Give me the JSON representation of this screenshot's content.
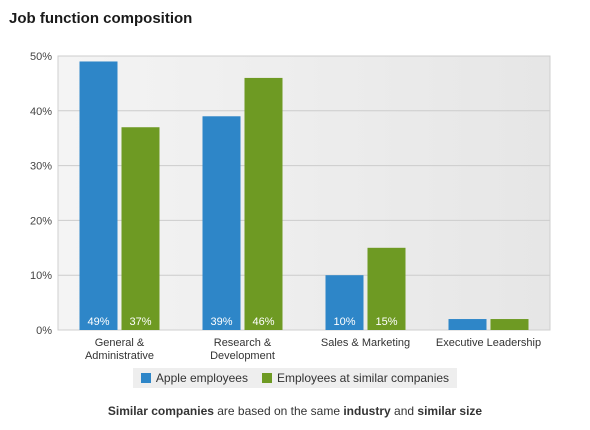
{
  "page": {
    "title": "Job function composition"
  },
  "legend": {
    "items": [
      {
        "label": "Apple employees",
        "color": "#2e86c8"
      },
      {
        "label": "Employees at similar companies",
        "color": "#6e9a23"
      }
    ]
  },
  "footnote": {
    "part1": "Similar companies",
    "part2": " are based on the same ",
    "part3": "industry",
    "part4": " and ",
    "part5": "similar size"
  },
  "chart_data": {
    "type": "bar",
    "title": "Job function composition",
    "categories": [
      [
        "General &",
        "Administrative"
      ],
      [
        "Research &",
        "Development"
      ],
      [
        "Sales & Marketing"
      ],
      [
        "Executive Leadership"
      ]
    ],
    "series": [
      {
        "name": "Apple employees",
        "color": "#2e86c8",
        "values": [
          49,
          39,
          10,
          2
        ],
        "data_labels": [
          "49%",
          "39%",
          "10%",
          ""
        ]
      },
      {
        "name": "Employees at similar companies",
        "color": "#6e9a23",
        "values": [
          37,
          46,
          15,
          2
        ],
        "data_labels": [
          "37%",
          "46%",
          "15%",
          ""
        ]
      }
    ],
    "ylim": [
      0,
      50
    ],
    "yticks": [
      0,
      10,
      20,
      30,
      40,
      50
    ],
    "ytick_labels": [
      "0%",
      "10%",
      "20%",
      "30%",
      "40%",
      "50%"
    ],
    "grid": true,
    "legend_position": "bottom"
  }
}
